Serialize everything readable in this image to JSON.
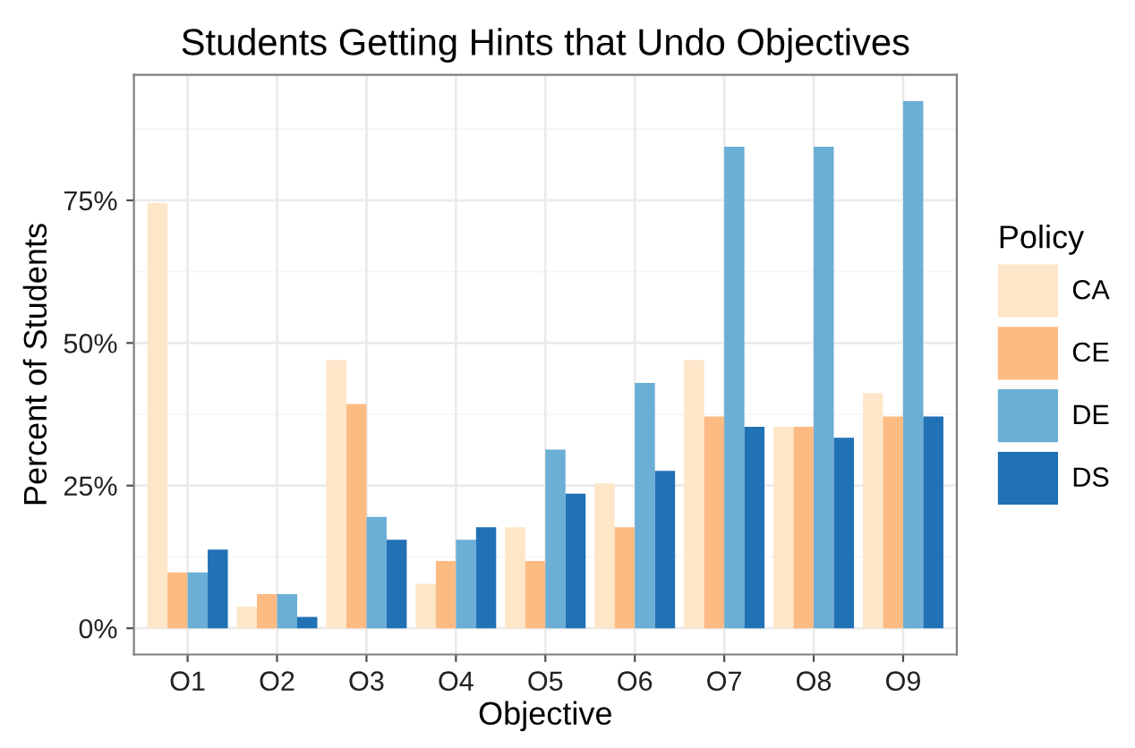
{
  "chart_data": {
    "type": "bar",
    "title": "Students Getting Hints that Undo Objectives",
    "xlabel": "Objective",
    "ylabel": "Percent of Students",
    "legend_title": "Policy",
    "categories": [
      "O1",
      "O2",
      "O3",
      "O4",
      "O5",
      "O6",
      "O7",
      "O8",
      "O9"
    ],
    "series": [
      {
        "name": "CA",
        "color": "#fee6c8",
        "values": [
          74.5,
          3.8,
          47.0,
          7.8,
          17.7,
          25.4,
          47.0,
          35.3,
          41.2
        ]
      },
      {
        "name": "CE",
        "color": "#fdbb84",
        "values": [
          9.8,
          6.0,
          39.3,
          11.8,
          11.8,
          17.7,
          37.1,
          35.3,
          37.1
        ]
      },
      {
        "name": "DE",
        "color": "#6baed6",
        "values": [
          9.8,
          6.0,
          19.5,
          15.5,
          31.3,
          43.0,
          84.4,
          84.4,
          92.4
        ]
      },
      {
        "name": "DS",
        "color": "#2171b5",
        "values": [
          13.8,
          2.0,
          15.5,
          17.7,
          23.6,
          27.6,
          35.3,
          33.4,
          37.1
        ]
      }
    ],
    "ylim": [
      -4.6,
      97
    ],
    "yticks": [
      {
        "value": 0,
        "label": "0%"
      },
      {
        "value": 25,
        "label": "25%"
      },
      {
        "value": 50,
        "label": "50%"
      },
      {
        "value": 75,
        "label": "75%"
      }
    ],
    "grid": true,
    "legend": "right"
  }
}
